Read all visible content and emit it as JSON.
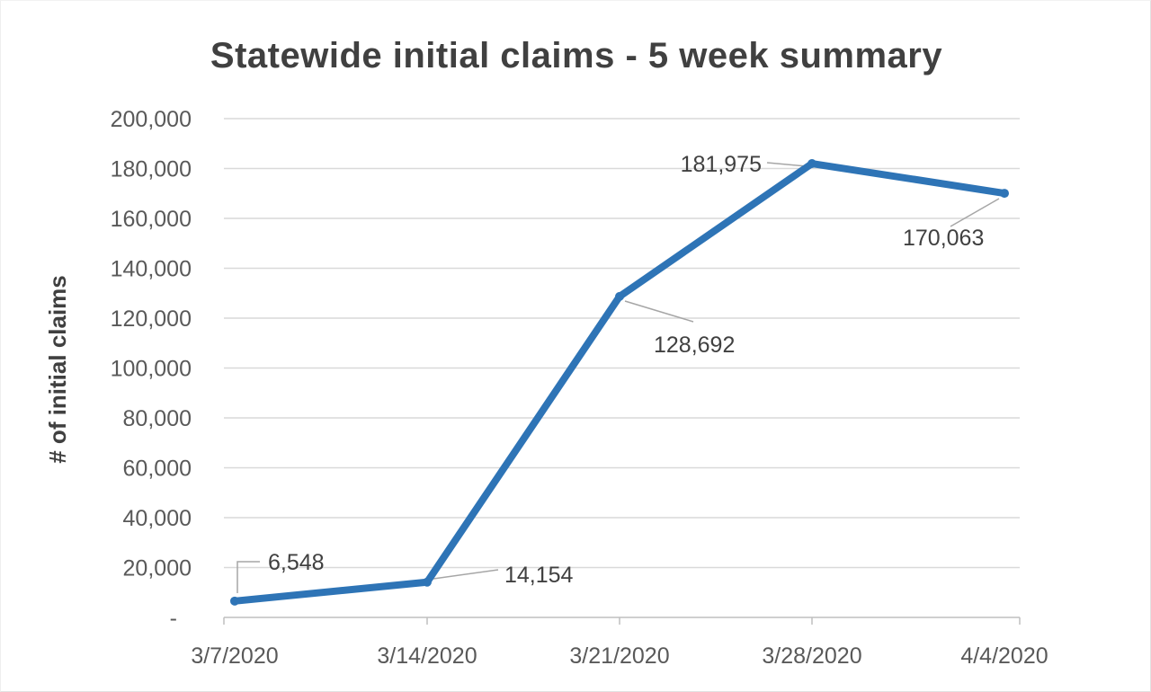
{
  "chart_data": {
    "type": "line",
    "title": "Statewide initial claims - 5 week summary",
    "xlabel": "",
    "ylabel": "# of initial claims",
    "categories": [
      "3/7/2020",
      "3/14/2020",
      "3/21/2020",
      "3/28/2020",
      "4/4/2020"
    ],
    "series": [
      {
        "name": "initial claims",
        "values": [
          6548,
          14154,
          128692,
          181975,
          170063
        ]
      }
    ],
    "data_labels": [
      "6,548",
      "14,154",
      "128,692",
      "181,975",
      "170,063"
    ],
    "ylim": [
      0,
      200000
    ],
    "ytick_step": 20000,
    "ytick_labels": [
      "-",
      "20,000",
      "40,000",
      "60,000",
      "80,000",
      "100,000",
      "120,000",
      "140,000",
      "160,000",
      "180,000",
      "200,000"
    ],
    "grid": true,
    "legend": "none",
    "colors": {
      "line": "#2E74B6",
      "marker": "#2E74B6",
      "gridline": "#D9D9D9",
      "axis_line": "#BFBFBF",
      "leader_line": "#A6A6A6",
      "title_text": "#404040",
      "tick_text": "#595959",
      "data_label_text": "#404040"
    }
  }
}
